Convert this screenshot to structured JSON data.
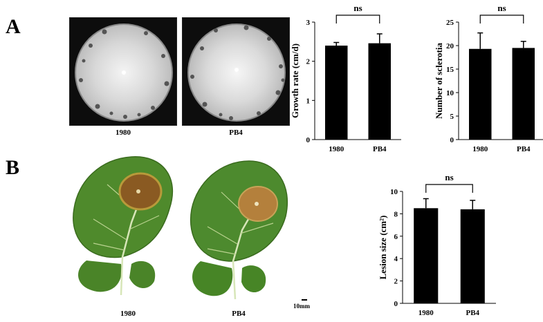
{
  "panels": {
    "a_label": "A",
    "b_label": "B"
  },
  "photos": {
    "plate_left_caption": "1980",
    "plate_right_caption": "PB4",
    "leaf_left_caption": "1980",
    "leaf_right_caption": "PB4",
    "scale_bar_label": "10mm"
  },
  "chart_data": [
    {
      "type": "bar",
      "categories": [
        "1980",
        "PB4"
      ],
      "values": [
        2.4,
        2.46
      ],
      "errors": [
        0.08,
        0.24
      ],
      "ylabel": "Growth rate (cm/d)",
      "xlabel": "",
      "ylim": [
        0,
        3
      ],
      "yticks": [
        "0",
        "1",
        "2",
        "3"
      ],
      "significance": "ns",
      "grid": false,
      "bar_color": "#000000"
    },
    {
      "type": "bar",
      "categories": [
        "1980",
        "PB4"
      ],
      "values": [
        19.3,
        19.5
      ],
      "errors": [
        3.4,
        1.4
      ],
      "ylabel": "Number of sclerotia",
      "xlabel": "",
      "ylim": [
        0,
        25
      ],
      "yticks": [
        "0",
        "5",
        "10",
        "15",
        "20",
        "25"
      ],
      "significance": "ns",
      "grid": false,
      "bar_color": "#000000"
    },
    {
      "type": "bar",
      "categories": [
        "1980",
        "PB4"
      ],
      "values": [
        8.5,
        8.4
      ],
      "errors": [
        0.85,
        0.8
      ],
      "ylabel": "Lesion size (cm²)",
      "xlabel": "",
      "ylim": [
        0,
        10
      ],
      "yticks": [
        "0",
        "2",
        "4",
        "6",
        "8",
        "10"
      ],
      "significance": "ns",
      "grid": false,
      "bar_color": "#000000"
    }
  ]
}
